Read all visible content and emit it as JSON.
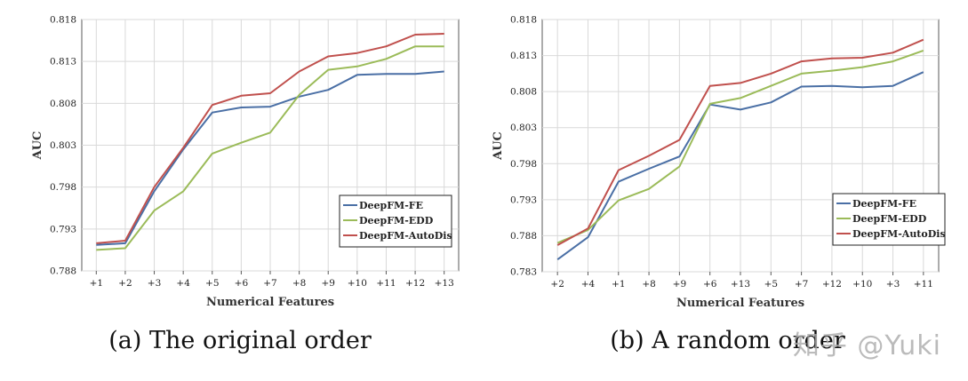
{
  "watermark": "知乎 @Yuki",
  "colors": {
    "fe": "#4a6fa5",
    "edd": "#9bbb59",
    "autodis": "#c0504d",
    "grid": "#d9d9d9",
    "axis": "#595959"
  },
  "chart_data": [
    {
      "type": "line",
      "caption": "(a) The original order",
      "xlabel": "Numerical Features",
      "ylabel": "AUC",
      "ylim": [
        0.788,
        0.818
      ],
      "yticks": [
        "0.818",
        "0.813",
        "0.808",
        "0.803",
        "0.798",
        "0.793",
        "0.788"
      ],
      "yticks_values": [
        0.818,
        0.813,
        0.808,
        0.803,
        0.798,
        0.793,
        0.788
      ],
      "categories": [
        "+1",
        "+2",
        "+3",
        "+4",
        "+5",
        "+6",
        "+7",
        "+8",
        "+9",
        "+10",
        "+11",
        "+12",
        "+13"
      ],
      "grid": true,
      "legend_position": "bottom-right",
      "series": [
        {
          "name": "DeepFM-FE",
          "color": "#4a6fa5",
          "values": [
            0.7911,
            0.7913,
            0.7975,
            0.8025,
            0.8069,
            0.8075,
            0.8076,
            0.8088,
            0.8096,
            0.8114,
            0.8115,
            0.8115,
            0.8118
          ]
        },
        {
          "name": "DeepFM-EDD",
          "color": "#9bbb59",
          "values": [
            0.7905,
            0.7907,
            0.7952,
            0.7975,
            0.802,
            0.8033,
            0.8045,
            0.809,
            0.812,
            0.8124,
            0.8133,
            0.8148,
            0.8148
          ]
        },
        {
          "name": "DeepFM-AutoDis",
          "color": "#c0504d",
          "values": [
            0.7913,
            0.7916,
            0.798,
            0.8027,
            0.8078,
            0.8089,
            0.8092,
            0.8118,
            0.8136,
            0.814,
            0.8148,
            0.8162,
            0.8163
          ]
        }
      ]
    },
    {
      "type": "line",
      "caption": "(b) A random order",
      "xlabel": "Numerical Features",
      "ylabel": "AUC",
      "ylim": [
        0.783,
        0.818
      ],
      "yticks": [
        "0.818",
        "0.813",
        "0.808",
        "0.803",
        "0.798",
        "0.793",
        "0.788",
        "0.783"
      ],
      "yticks_values": [
        0.818,
        0.813,
        0.808,
        0.803,
        0.798,
        0.793,
        0.788,
        0.783
      ],
      "categories": [
        "+2",
        "+4",
        "+1",
        "+8",
        "+9",
        "+6",
        "+13",
        "+5",
        "+7",
        "+12",
        "+10",
        "+3",
        "+11"
      ],
      "grid": true,
      "legend_position": "right",
      "series": [
        {
          "name": "DeepFM-FE",
          "color": "#4a6fa5",
          "values": [
            0.7847,
            0.7878,
            0.7955,
            0.7973,
            0.799,
            0.8062,
            0.8055,
            0.8065,
            0.8087,
            0.8088,
            0.8086,
            0.8088,
            0.8107
          ]
        },
        {
          "name": "DeepFM-EDD",
          "color": "#9bbb59",
          "values": [
            0.787,
            0.7888,
            0.7929,
            0.7945,
            0.7976,
            0.8063,
            0.8071,
            0.8088,
            0.8105,
            0.8109,
            0.8114,
            0.8122,
            0.8137
          ]
        },
        {
          "name": "DeepFM-AutoDis",
          "color": "#c0504d",
          "values": [
            0.7867,
            0.789,
            0.7971,
            0.7991,
            0.8013,
            0.8088,
            0.8092,
            0.8105,
            0.8122,
            0.8126,
            0.8127,
            0.8134,
            0.8152
          ]
        }
      ]
    }
  ]
}
